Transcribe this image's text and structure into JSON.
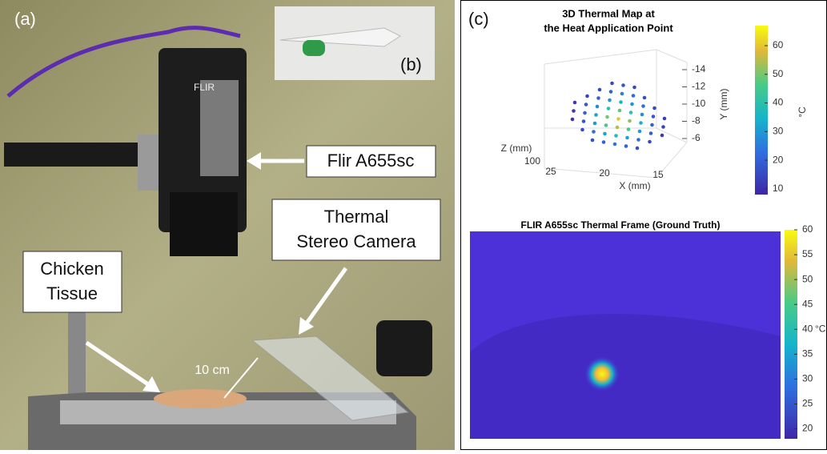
{
  "panel_a": {
    "label": "(a)",
    "inset_label": "(b)",
    "callouts": {
      "camera": [
        "Flir A655sc"
      ],
      "stereo": [
        "Thermal",
        "Stereo Camera"
      ],
      "tissue": [
        "Chicken",
        "Tissue"
      ]
    },
    "distance": "10 cm",
    "brand": "FLIR"
  },
  "panel_c": {
    "label": "(c)",
    "scatter": {
      "title": [
        "3D Thermal Map at",
        "the Heat Application Point"
      ],
      "xlabel": "X (mm)",
      "ylabel": "Y (mm)",
      "zlabel": "Z (mm)",
      "xticks": [
        25,
        20,
        15
      ],
      "yticks": [
        -14,
        -12,
        -10,
        -8,
        -6
      ],
      "zticks": [
        100
      ],
      "grid_x": [
        23,
        22,
        21,
        20,
        19,
        18,
        17,
        16,
        15
      ],
      "grid_y": [
        -6,
        -7,
        -8,
        -9,
        -10,
        -11,
        -12,
        -13
      ],
      "temps": [
        [
          null,
          null,
          16,
          20,
          24,
          20,
          16,
          null,
          null
        ],
        [
          null,
          15,
          22,
          32,
          38,
          32,
          22,
          15,
          null
        ],
        [
          11,
          18,
          30,
          45,
          55,
          46,
          30,
          19,
          12
        ],
        [
          12,
          20,
          32,
          50,
          60,
          52,
          34,
          20,
          14
        ],
        [
          12,
          18,
          28,
          40,
          48,
          40,
          28,
          18,
          13
        ],
        [
          null,
          14,
          20,
          30,
          35,
          30,
          22,
          15,
          null
        ],
        [
          null,
          null,
          15,
          20,
          25,
          22,
          16,
          null,
          null
        ],
        [
          null,
          null,
          null,
          15,
          18,
          15,
          null,
          null,
          null
        ]
      ],
      "clim": [
        8,
        67
      ],
      "cticks": [
        10,
        20,
        30,
        40,
        50,
        60
      ],
      "cunit": "°C"
    },
    "heatmap": {
      "title": "FLIR A655sc Thermal Frame (Ground Truth)",
      "clim": [
        18,
        60
      ],
      "cticks": [
        20,
        25,
        30,
        35,
        40,
        45,
        50,
        55,
        60
      ],
      "cunit": "°C"
    }
  }
}
